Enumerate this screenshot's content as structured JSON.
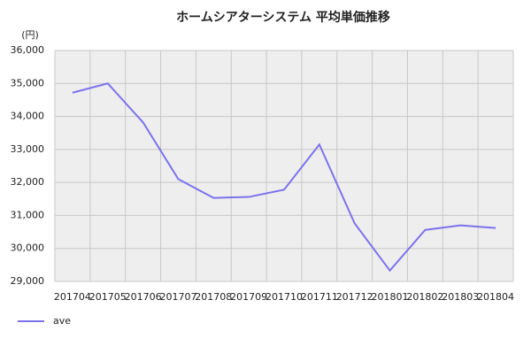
{
  "chart_data": {
    "type": "line",
    "title": "ホームシアターシステム 平均単価推移",
    "y_unit": "(円)",
    "categories": [
      "201704",
      "201705",
      "201706",
      "201707",
      "201708",
      "201709",
      "201710",
      "201711",
      "201712",
      "201801",
      "201802",
      "201803",
      "201804"
    ],
    "series": [
      {
        "name": "ave",
        "color": "#7b72ec",
        "values": [
          34720,
          35000,
          33820,
          32100,
          31530,
          31560,
          31780,
          33150,
          30760,
          29330,
          30560,
          30700,
          30620
        ]
      }
    ],
    "ylim": [
      29000,
      36000
    ],
    "yticks": [
      {
        "value": 29000,
        "label": "29,000"
      },
      {
        "value": 30000,
        "label": "30,000"
      },
      {
        "value": 31000,
        "label": "31,000"
      },
      {
        "value": 32000,
        "label": "32,000"
      },
      {
        "value": 33000,
        "label": "33,000"
      },
      {
        "value": 34000,
        "label": "34,000"
      },
      {
        "value": 35000,
        "label": "35,000"
      },
      {
        "value": 36000,
        "label": "36,000"
      }
    ],
    "grid": true,
    "legend": "bottom-left"
  }
}
